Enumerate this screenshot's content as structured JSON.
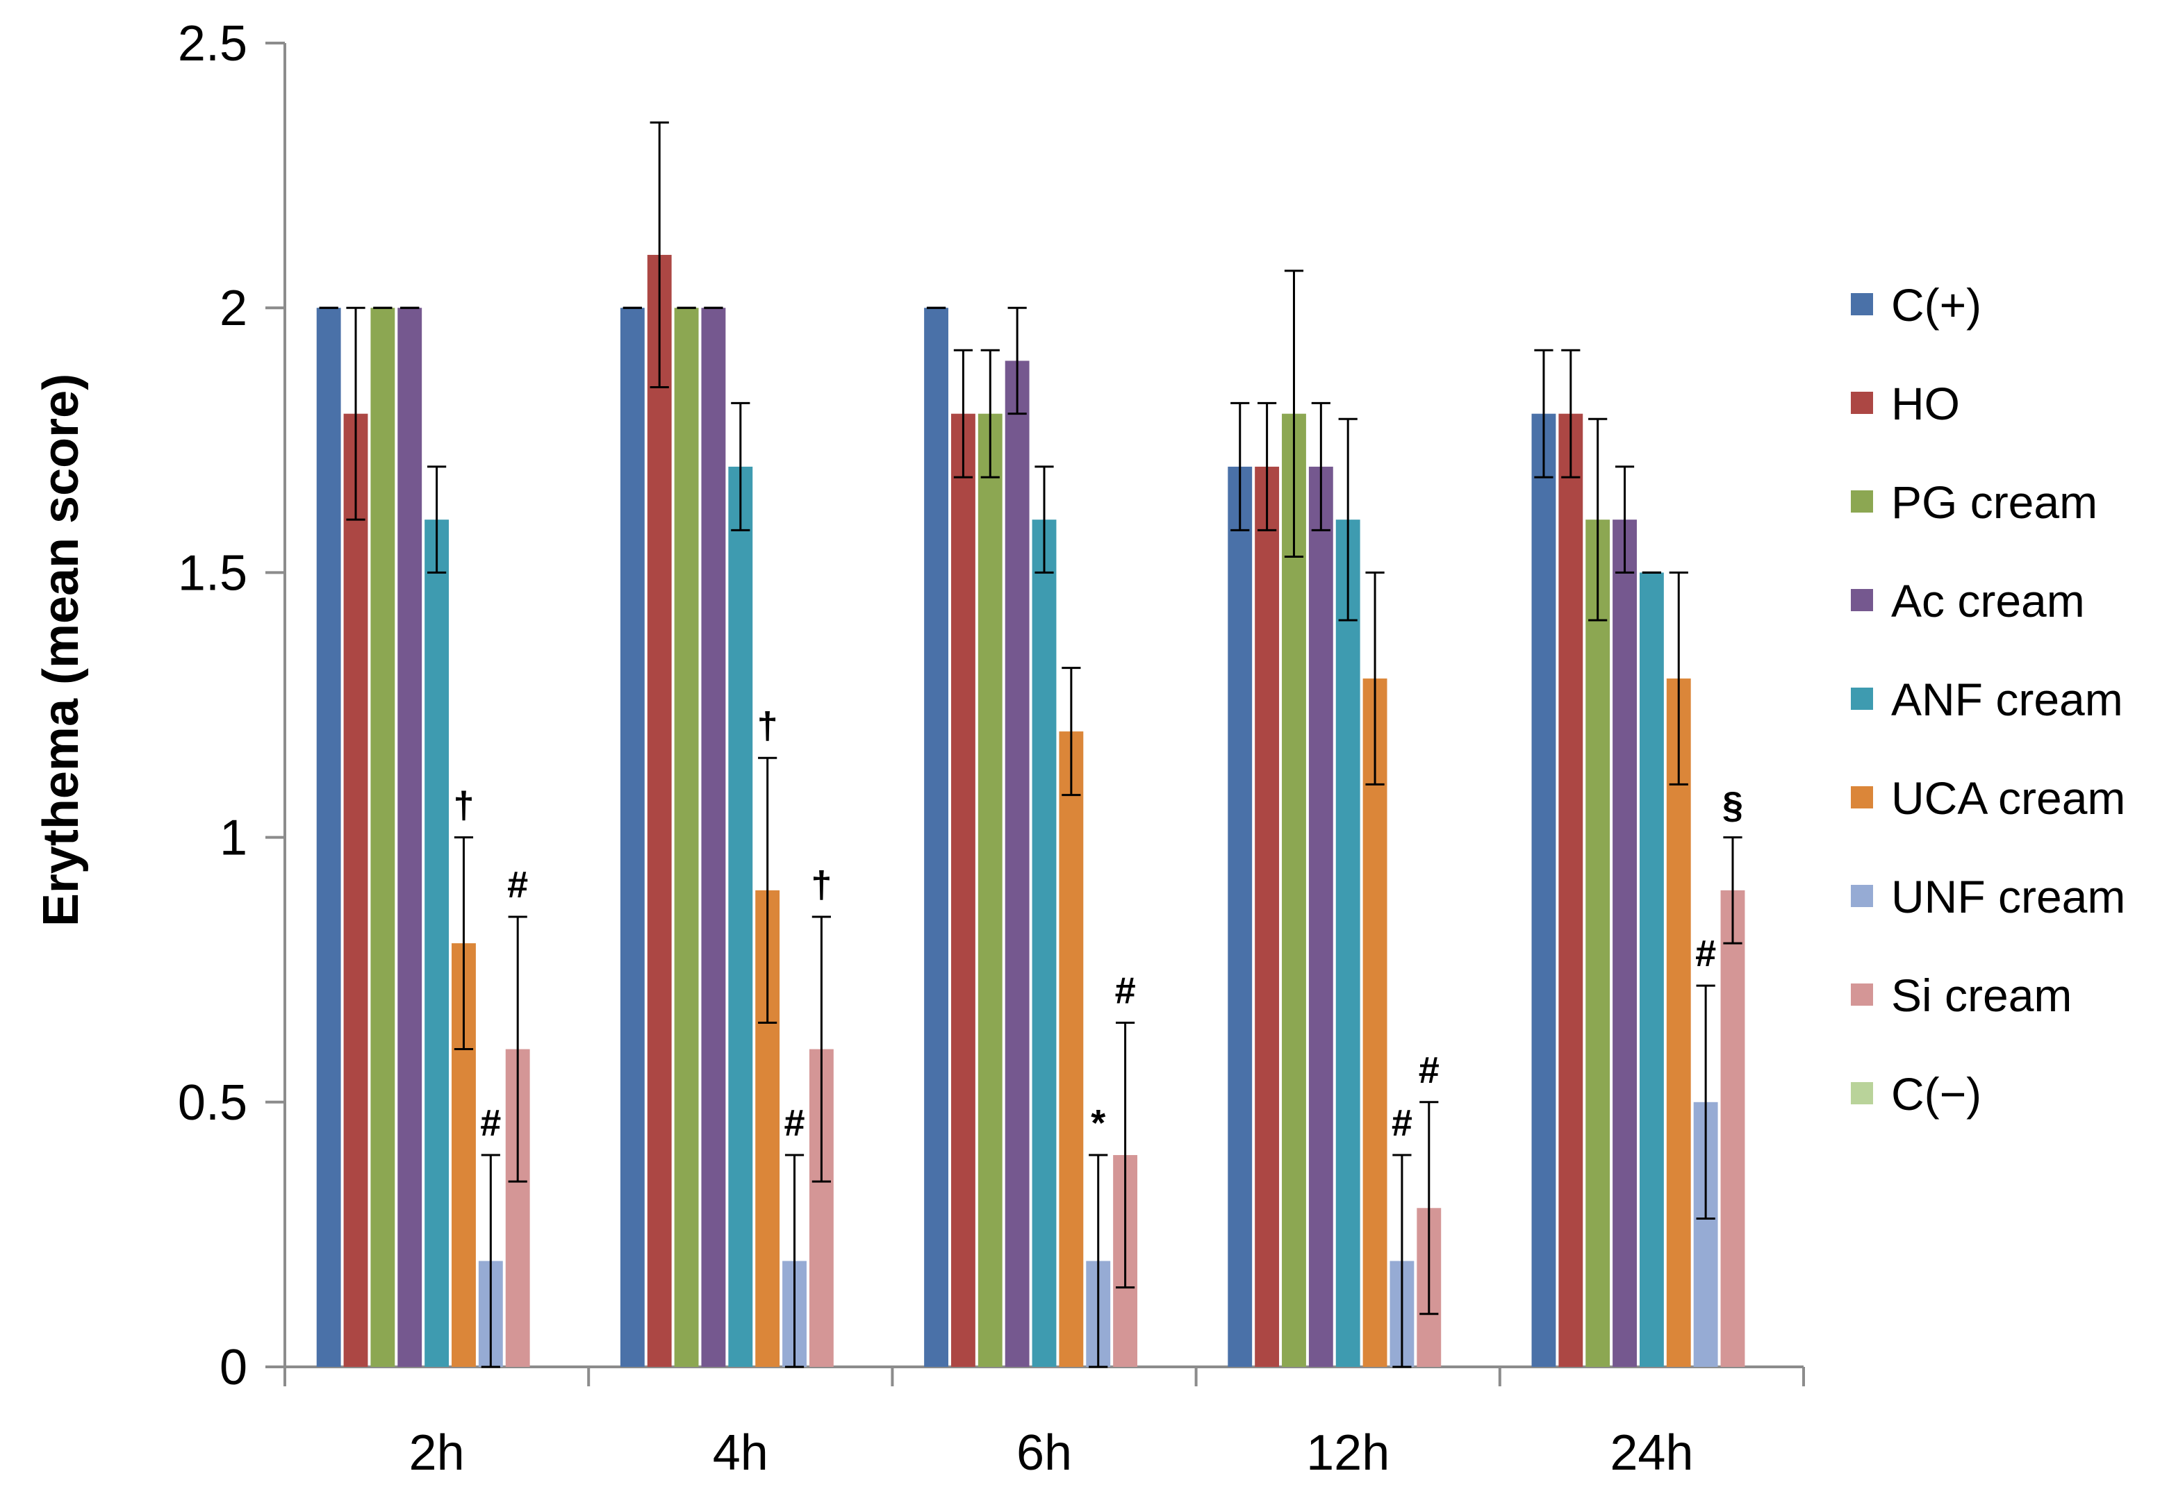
{
  "chart_data": {
    "type": "bar",
    "title": "",
    "xlabel": "",
    "ylabel": "Erythema (mean score)",
    "ylim": [
      0,
      2.5
    ],
    "yticks": [
      "0",
      "0.5",
      "1",
      "1.5",
      "2",
      "2.5"
    ],
    "grid": false,
    "legend_position": "right",
    "categories": [
      "2h",
      "4h",
      "6h",
      "12h",
      "24h"
    ],
    "series": [
      {
        "name": "C(+)",
        "color": "#4A71A8",
        "values": [
          2.0,
          2.0,
          2.0,
          1.7,
          1.8
        ],
        "errors": [
          0,
          0,
          0,
          0.12,
          0.12
        ]
      },
      {
        "name": "HO",
        "color": "#AC4744",
        "values": [
          1.8,
          2.1,
          1.8,
          1.7,
          1.8
        ],
        "errors": [
          0.2,
          0.25,
          0.12,
          0.12,
          0.12
        ]
      },
      {
        "name": "PG cream",
        "color": "#8CA752",
        "values": [
          2.0,
          2.0,
          1.8,
          1.8,
          1.6
        ],
        "errors": [
          0,
          0,
          0.12,
          0.27,
          0.19
        ]
      },
      {
        "name": "Ac cream",
        "color": "#75588F",
        "values": [
          2.0,
          2.0,
          1.9,
          1.7,
          1.6
        ],
        "errors": [
          0,
          0,
          0.1,
          0.12,
          0.1
        ]
      },
      {
        "name": "ANF cream",
        "color": "#3E9BB0",
        "values": [
          1.6,
          1.7,
          1.6,
          1.6,
          1.5
        ],
        "errors": [
          0.1,
          0.12,
          0.1,
          0.19,
          0
        ]
      },
      {
        "name": "UCA cream",
        "color": "#DB8639",
        "values": [
          0.8,
          0.9,
          1.2,
          1.3,
          1.3
        ],
        "errors": [
          0.2,
          0.25,
          0.12,
          0.2,
          0.2
        ]
      },
      {
        "name": "UNF cream",
        "color": "#96ABD4",
        "values": [
          0.2,
          0.2,
          0.2,
          0.2,
          0.5
        ],
        "errors": [
          0.2,
          0.2,
          0.2,
          0.2,
          0.22
        ]
      },
      {
        "name": "Si cream",
        "color": "#D49696",
        "values": [
          0.6,
          0.6,
          0.4,
          0.3,
          0.9
        ],
        "errors": [
          0.25,
          0.25,
          0.25,
          0.2,
          0.1
        ]
      },
      {
        "name": "C(−)",
        "color": "#B9D39A",
        "values": [
          0,
          0,
          0,
          0,
          0
        ],
        "errors": [
          0,
          0,
          0,
          0,
          0
        ]
      }
    ],
    "annotations": [
      {
        "category": "2h",
        "series": "UCA cream",
        "text": "†"
      },
      {
        "category": "2h",
        "series": "UNF cream",
        "text": "#"
      },
      {
        "category": "2h",
        "series": "Si cream",
        "text": "#"
      },
      {
        "category": "4h",
        "series": "UCA cream",
        "text": "†"
      },
      {
        "category": "4h",
        "series": "UNF cream",
        "text": "#"
      },
      {
        "category": "4h",
        "series": "Si cream",
        "text": "†"
      },
      {
        "category": "6h",
        "series": "UNF cream",
        "text": "*"
      },
      {
        "category": "6h",
        "series": "Si cream",
        "text": "#"
      },
      {
        "category": "12h",
        "series": "UNF cream",
        "text": "#"
      },
      {
        "category": "12h",
        "series": "Si cream",
        "text": "#"
      },
      {
        "category": "24h",
        "series": "UNF cream",
        "text": "#"
      },
      {
        "category": "24h",
        "series": "Si cream",
        "text": "§"
      }
    ]
  }
}
